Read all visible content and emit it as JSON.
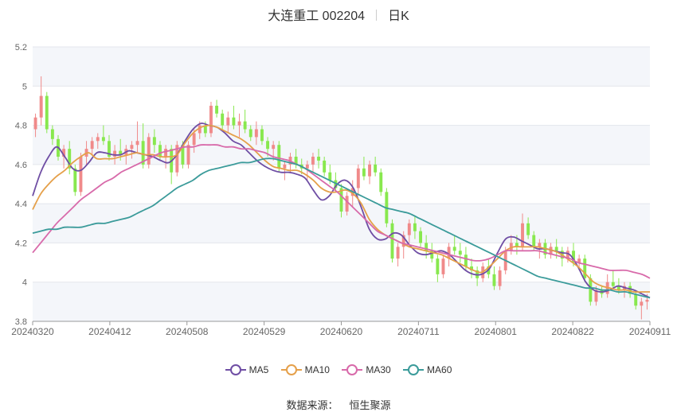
{
  "header": {
    "title": "大连重工 002204",
    "period": "日K"
  },
  "legend": [
    {
      "label": "MA5",
      "color": "#6f4ea4"
    },
    {
      "label": "MA10",
      "color": "#e5a04a"
    },
    {
      "label": "MA30",
      "color": "#d86aaa"
    },
    {
      "label": "MA60",
      "color": "#3b9b9a"
    }
  ],
  "source": {
    "label": "数据来源：",
    "value": "恒生聚源"
  },
  "colors": {
    "up": "#f08a8a",
    "down": "#88e84e"
  },
  "chart_data": {
    "type": "candlestick",
    "title": "大连重工 002204",
    "ylim": [
      3.8,
      5.2
    ],
    "yticks": [
      "3.8",
      "4",
      "4.2",
      "4.4",
      "4.6",
      "4.8",
      "5",
      "5.2"
    ],
    "xticks": [
      "20240320",
      "20240412",
      "20240508",
      "20240529",
      "20240620",
      "20240711",
      "20240801",
      "20240822",
      "20240911"
    ],
    "grid": true,
    "legend_position": "bottom",
    "candles": [
      [
        4.78,
        4.86,
        4.74,
        4.84
      ],
      [
        4.84,
        5.05,
        4.8,
        4.95
      ],
      [
        4.95,
        4.97,
        4.76,
        4.78
      ],
      [
        4.78,
        4.8,
        4.7,
        4.73
      ],
      [
        4.73,
        4.75,
        4.62,
        4.64
      ],
      [
        4.64,
        4.7,
        4.58,
        4.68
      ],
      [
        4.68,
        4.72,
        4.55,
        4.58
      ],
      [
        4.58,
        4.6,
        4.44,
        4.46
      ],
      [
        4.46,
        4.66,
        4.44,
        4.64
      ],
      [
        4.64,
        4.72,
        4.6,
        4.68
      ],
      [
        4.68,
        4.74,
        4.65,
        4.72
      ],
      [
        4.72,
        4.76,
        4.68,
        4.74
      ],
      [
        4.74,
        4.8,
        4.7,
        4.72
      ],
      [
        4.72,
        4.75,
        4.62,
        4.64
      ],
      [
        4.64,
        4.7,
        4.6,
        4.67
      ],
      [
        4.67,
        4.73,
        4.62,
        4.65
      ],
      [
        4.65,
        4.7,
        4.6,
        4.68
      ],
      [
        4.68,
        4.72,
        4.63,
        4.7
      ],
      [
        4.7,
        4.82,
        4.66,
        4.72
      ],
      [
        4.72,
        4.81,
        4.58,
        4.6
      ],
      [
        4.6,
        4.76,
        4.58,
        4.74
      ],
      [
        4.74,
        4.78,
        4.66,
        4.7
      ],
      [
        4.7,
        4.72,
        4.62,
        4.64
      ],
      [
        4.64,
        4.7,
        4.58,
        4.68
      ],
      [
        4.68,
        4.7,
        4.5,
        4.56
      ],
      [
        4.56,
        4.72,
        4.54,
        4.7
      ],
      [
        4.7,
        4.72,
        4.58,
        4.6
      ],
      [
        4.6,
        4.72,
        4.58,
        4.7
      ],
      [
        4.7,
        4.78,
        4.66,
        4.76
      ],
      [
        4.76,
        4.82,
        4.73,
        4.8
      ],
      [
        4.8,
        4.82,
        4.74,
        4.76
      ],
      [
        4.76,
        4.92,
        4.74,
        4.9
      ],
      [
        4.9,
        4.93,
        4.84,
        4.86
      ],
      [
        4.86,
        4.88,
        4.78,
        4.8
      ],
      [
        4.8,
        4.87,
        4.76,
        4.84
      ],
      [
        4.84,
        4.9,
        4.78,
        4.8
      ],
      [
        4.8,
        4.86,
        4.74,
        4.82
      ],
      [
        4.82,
        4.88,
        4.76,
        4.78
      ],
      [
        4.78,
        4.8,
        4.72,
        4.74
      ],
      [
        4.74,
        4.82,
        4.7,
        4.78
      ],
      [
        4.78,
        4.8,
        4.7,
        4.72
      ],
      [
        4.72,
        4.74,
        4.64,
        4.68
      ],
      [
        4.68,
        4.72,
        4.62,
        4.7
      ],
      [
        4.7,
        4.72,
        4.56,
        4.58
      ],
      [
        4.58,
        4.62,
        4.52,
        4.6
      ],
      [
        4.6,
        4.66,
        4.56,
        4.64
      ],
      [
        4.64,
        4.68,
        4.58,
        4.6
      ],
      [
        4.6,
        4.63,
        4.55,
        4.58
      ],
      [
        4.58,
        4.62,
        4.52,
        4.6
      ],
      [
        4.6,
        4.66,
        4.56,
        4.64
      ],
      [
        4.64,
        4.68,
        4.58,
        4.62
      ],
      [
        4.62,
        4.64,
        4.54,
        4.56
      ],
      [
        4.56,
        4.6,
        4.5,
        4.52
      ],
      [
        4.52,
        4.56,
        4.46,
        4.48
      ],
      [
        4.48,
        4.5,
        4.33,
        4.36
      ],
      [
        4.36,
        4.46,
        4.34,
        4.44
      ],
      [
        4.44,
        4.52,
        4.38,
        4.48
      ],
      [
        4.48,
        4.6,
        4.44,
        4.58
      ],
      [
        4.58,
        4.64,
        4.52,
        4.54
      ],
      [
        4.54,
        4.62,
        4.5,
        4.6
      ],
      [
        4.6,
        4.64,
        4.54,
        4.56
      ],
      [
        4.56,
        4.58,
        4.44,
        4.46
      ],
      [
        4.46,
        4.48,
        4.28,
        4.3
      ],
      [
        4.3,
        4.32,
        4.1,
        4.12
      ],
      [
        4.12,
        4.2,
        4.08,
        4.18
      ],
      [
        4.18,
        4.26,
        4.12,
        4.24
      ],
      [
        4.24,
        4.32,
        4.2,
        4.3
      ],
      [
        4.3,
        4.34,
        4.22,
        4.26
      ],
      [
        4.26,
        4.28,
        4.18,
        4.2
      ],
      [
        4.2,
        4.24,
        4.12,
        4.16
      ],
      [
        4.16,
        4.2,
        4.1,
        4.12
      ],
      [
        4.12,
        4.14,
        4.0,
        4.04
      ],
      [
        4.04,
        4.14,
        4.02,
        4.12
      ],
      [
        4.12,
        4.2,
        4.08,
        4.18
      ],
      [
        4.18,
        4.24,
        4.14,
        4.16
      ],
      [
        4.16,
        4.2,
        4.1,
        4.14
      ],
      [
        4.14,
        4.18,
        4.06,
        4.08
      ],
      [
        4.08,
        4.12,
        4.02,
        4.06
      ],
      [
        4.06,
        4.08,
        3.98,
        4.02
      ],
      [
        4.02,
        4.1,
        4.0,
        4.08
      ],
      [
        4.08,
        4.12,
        4.02,
        4.04
      ],
      [
        4.04,
        4.08,
        3.96,
        3.98
      ],
      [
        3.98,
        4.08,
        3.96,
        4.06
      ],
      [
        4.06,
        4.18,
        4.04,
        4.16
      ],
      [
        4.16,
        4.24,
        4.14,
        4.2
      ],
      [
        4.2,
        4.24,
        4.14,
        4.18
      ],
      [
        4.18,
        4.35,
        4.16,
        4.3
      ],
      [
        4.3,
        4.33,
        4.22,
        4.24
      ],
      [
        4.24,
        4.26,
        4.16,
        4.18
      ],
      [
        4.18,
        4.22,
        4.12,
        4.2
      ],
      [
        4.2,
        4.22,
        4.12,
        4.14
      ],
      [
        4.14,
        4.2,
        4.12,
        4.18
      ],
      [
        4.18,
        4.22,
        4.12,
        4.16
      ],
      [
        4.16,
        4.18,
        4.08,
        4.12
      ],
      [
        4.12,
        4.18,
        4.1,
        4.16
      ],
      [
        4.16,
        4.2,
        4.08,
        4.1
      ],
      [
        4.1,
        4.14,
        4.06,
        4.12
      ],
      [
        4.12,
        4.14,
        4.0,
        4.02
      ],
      [
        4.02,
        4.04,
        3.88,
        3.9
      ],
      [
        3.9,
        3.98,
        3.88,
        3.96
      ],
      [
        3.96,
        3.98,
        3.92,
        3.94
      ],
      [
        3.94,
        4.04,
        3.92,
        4.0
      ],
      [
        4.0,
        4.06,
        3.96,
        3.98
      ],
      [
        3.98,
        4.02,
        3.94,
        3.96
      ],
      [
        3.96,
        4.0,
        3.92,
        3.98
      ],
      [
        3.98,
        4.0,
        3.92,
        3.94
      ],
      [
        3.94,
        3.96,
        3.86,
        3.88
      ],
      [
        3.88,
        3.92,
        3.81,
        3.9
      ],
      [
        3.9,
        3.94,
        3.86,
        3.91
      ]
    ],
    "series": [
      {
        "name": "MA5",
        "values": [
          4.44,
          4.56,
          4.64,
          4.69,
          4.64,
          4.58,
          4.57,
          4.61,
          4.66,
          4.66,
          4.65,
          4.65,
          4.67,
          4.66,
          4.65,
          4.64,
          4.62,
          4.61,
          4.65,
          4.72,
          4.78,
          4.81,
          4.8,
          4.79,
          4.76,
          4.72,
          4.7,
          4.66,
          4.62,
          4.59,
          4.57,
          4.56,
          4.56,
          4.55,
          4.53,
          4.47,
          4.42,
          4.44,
          4.5,
          4.52,
          4.48,
          4.38,
          4.27,
          4.22,
          4.22,
          4.25,
          4.24,
          4.19,
          4.15,
          4.14,
          4.15,
          4.16,
          4.14,
          4.1,
          4.06,
          4.04,
          4.04,
          4.07,
          4.15,
          4.22,
          4.23,
          4.21,
          4.19,
          4.17,
          4.17,
          4.16,
          4.15,
          4.14,
          4.08,
          4.0,
          3.96,
          3.95,
          3.96,
          3.98,
          3.97,
          3.96,
          3.94,
          3.92
        ]
      },
      {
        "name": "MA10",
        "values": [
          4.37,
          4.45,
          4.5,
          4.54,
          4.57,
          4.61,
          4.64,
          4.66,
          4.63,
          4.63,
          4.63,
          4.64,
          4.65,
          4.66,
          4.65,
          4.65,
          4.64,
          4.64,
          4.65,
          4.71,
          4.76,
          4.79,
          4.8,
          4.79,
          4.77,
          4.75,
          4.73,
          4.7,
          4.66,
          4.62,
          4.59,
          4.58,
          4.57,
          4.57,
          4.55,
          4.52,
          4.48,
          4.46,
          4.46,
          4.47,
          4.45,
          4.4,
          4.32,
          4.27,
          4.24,
          4.22,
          4.2,
          4.18,
          4.17,
          4.16,
          4.15,
          4.14,
          4.12,
          4.1,
          4.08,
          4.06,
          4.05,
          4.08,
          4.12,
          4.16,
          4.18,
          4.18,
          4.18,
          4.18,
          4.17,
          4.16,
          4.14,
          4.11,
          4.08,
          4.04,
          4.0,
          3.98,
          3.97,
          3.96,
          3.96,
          3.95,
          3.95,
          3.95
        ]
      },
      {
        "name": "MA30",
        "values": [
          4.15,
          4.2,
          4.25,
          4.3,
          4.34,
          4.38,
          4.42,
          4.45,
          4.48,
          4.51,
          4.53,
          4.56,
          4.58,
          4.6,
          4.62,
          4.64,
          4.66,
          4.67,
          4.68,
          4.69,
          4.69,
          4.7,
          4.7,
          4.7,
          4.69,
          4.69,
          4.68,
          4.68,
          4.67,
          4.66,
          4.64,
          4.63,
          4.62,
          4.6,
          4.58,
          4.55,
          4.52,
          4.49,
          4.46,
          4.42,
          4.38,
          4.34,
          4.3,
          4.26,
          4.24,
          4.22,
          4.2,
          4.19,
          4.18,
          4.17,
          4.16,
          4.15,
          4.14,
          4.13,
          4.12,
          4.11,
          4.11,
          4.12,
          4.14,
          4.16,
          4.16,
          4.16,
          4.16,
          4.16,
          4.15,
          4.14,
          4.13,
          4.12,
          4.1,
          4.09,
          4.08,
          4.07,
          4.06,
          4.06,
          4.06,
          4.05,
          4.04,
          4.02
        ]
      },
      {
        "name": "MA60",
        "values": [
          4.25,
          4.26,
          4.27,
          4.27,
          4.28,
          4.28,
          4.28,
          4.29,
          4.3,
          4.3,
          4.31,
          4.32,
          4.33,
          4.35,
          4.37,
          4.39,
          4.42,
          4.45,
          4.48,
          4.5,
          4.52,
          4.55,
          4.57,
          4.58,
          4.59,
          4.6,
          4.61,
          4.61,
          4.62,
          4.63,
          4.63,
          4.62,
          4.61,
          4.6,
          4.58,
          4.56,
          4.54,
          4.52,
          4.5,
          4.48,
          4.46,
          4.44,
          4.42,
          4.4,
          4.38,
          4.37,
          4.36,
          4.35,
          4.33,
          4.31,
          4.29,
          4.27,
          4.25,
          4.23,
          4.21,
          4.19,
          4.17,
          4.15,
          4.13,
          4.11,
          4.09,
          4.07,
          4.05,
          4.03,
          4.02,
          4.01,
          4.0,
          3.99,
          3.98,
          3.97,
          3.97,
          3.96,
          3.96,
          3.95,
          3.95,
          3.94,
          3.93,
          3.92
        ]
      }
    ]
  }
}
